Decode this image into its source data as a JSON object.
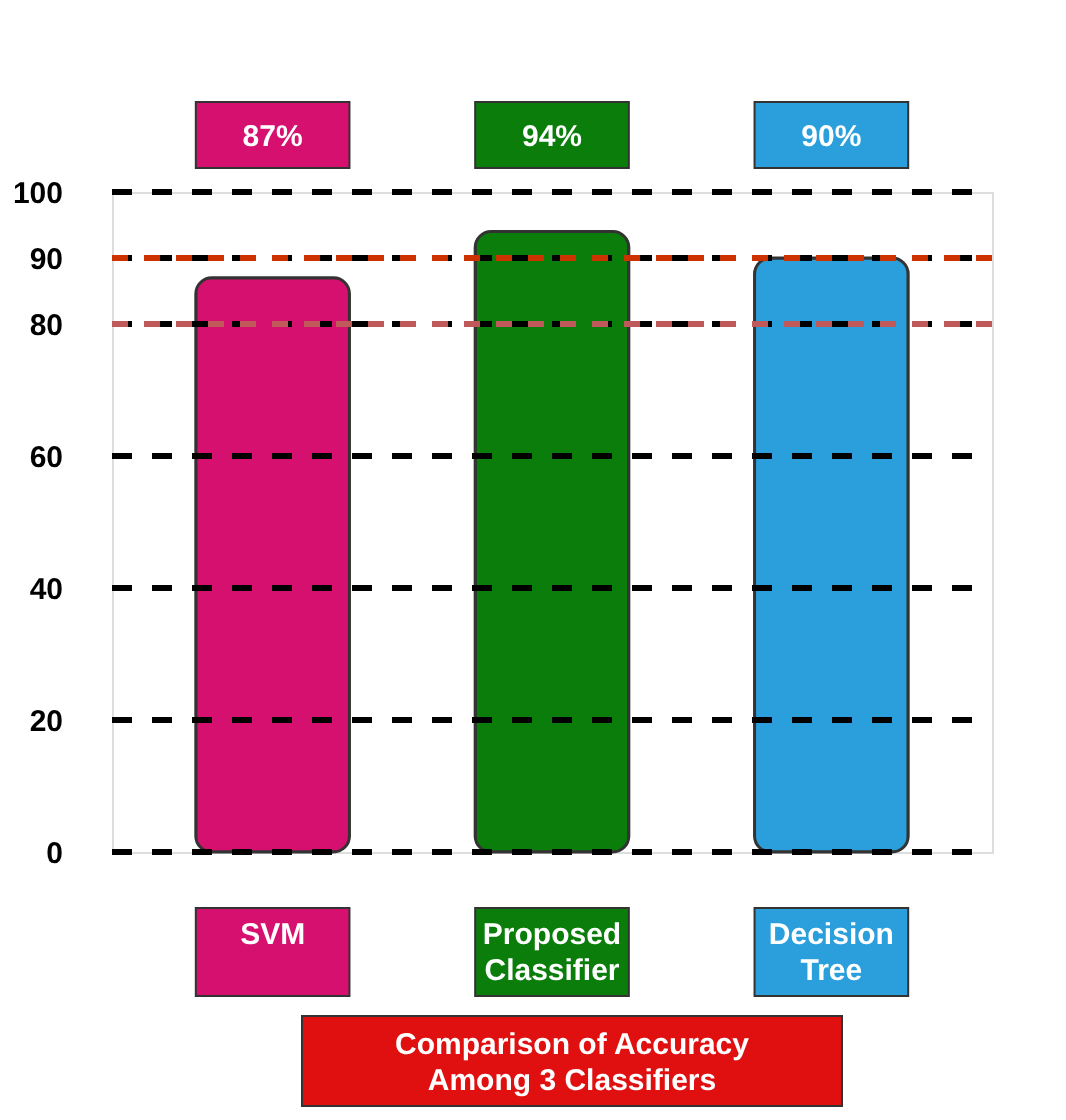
{
  "chart_data": {
    "type": "bar",
    "title": "Comparison  of Accuracy\nAmong 3 Classifiers",
    "categories": [
      "SVM",
      "Proposed Classifier",
      "Decision Tree"
    ],
    "values": [
      87,
      94,
      90
    ],
    "colors": [
      "#d6106e",
      "#0a7d0a",
      "#2a9fdc"
    ],
    "value_labels": [
      "87%",
      "94%",
      "90%"
    ],
    "ylim": [
      0,
      100
    ],
    "yticks": [
      0,
      20,
      40,
      60,
      80,
      90,
      100
    ],
    "grid": "y",
    "ref_lines": [
      {
        "axis": "y",
        "value": 90,
        "color": "#cc3300",
        "line_style": "dashed"
      },
      {
        "axis": "y",
        "value": 80,
        "color": "#c05a5a",
        "line_style": "dashed"
      }
    ]
  }
}
